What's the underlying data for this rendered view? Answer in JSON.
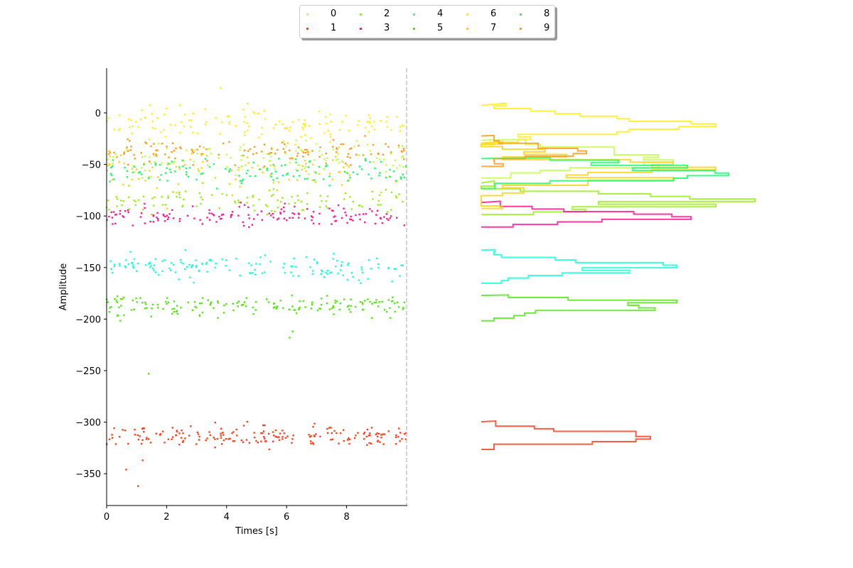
{
  "chart_data": [
    {
      "type": "scatter",
      "title": "",
      "xlabel": "Times [s]",
      "ylabel": "Amplitude",
      "xlim": [
        0,
        10
      ],
      "ylim": [
        -382,
        43
      ],
      "xticks": [
        0,
        2,
        4,
        6,
        8
      ],
      "yticks": [
        0,
        -50,
        -100,
        -150,
        -200,
        -250,
        -300,
        -350
      ],
      "grid": false,
      "vline": {
        "x": 10,
        "style": "dashed",
        "color": "#aaaaaa"
      },
      "legend_position": "top-center, outside, 5 columns",
      "series": [
        {
          "name": "0",
          "color": "#c2ff4a",
          "center": -45,
          "spread": 9,
          "count": 110
        },
        {
          "name": "1",
          "color": "#ff4020",
          "center": -313,
          "spread": 5,
          "count": 190
        },
        {
          "name": "2",
          "color": "#9aef1a",
          "center": -85,
          "spread": 7,
          "count": 110
        },
        {
          "name": "3",
          "color": "#ff1a8c",
          "center": -100,
          "spread": 5,
          "count": 150
        },
        {
          "name": "4",
          "color": "#1affd5",
          "center": -150,
          "spread": 6,
          "count": 150
        },
        {
          "name": "5",
          "color": "#55e51a",
          "center": -187,
          "spread": 5,
          "count": 170
        },
        {
          "name": "6",
          "color": "#ffee1a",
          "center": -10,
          "spread": 7,
          "count": 130
        },
        {
          "name": "7",
          "color": "#ffd21a",
          "center": -57,
          "spread": 10,
          "count": 90
        },
        {
          "name": "8",
          "color": "#1aff66",
          "center": -58,
          "spread": 6,
          "count": 120
        },
        {
          "name": "9",
          "color": "#ff9a1a",
          "center": -37,
          "spread": 6,
          "count": 120
        }
      ],
      "outliers": [
        {
          "series": "6",
          "x": 3.8,
          "y": 24
        },
        {
          "series": "0",
          "x": 4.7,
          "y": 9
        },
        {
          "series": "5",
          "x": 1.4,
          "y": -253
        },
        {
          "series": "1",
          "x": 0.65,
          "y": -346
        },
        {
          "series": "1",
          "x": 1.2,
          "y": -337
        },
        {
          "series": "1",
          "x": 1.05,
          "y": -362
        },
        {
          "series": "5",
          "x": 6.1,
          "y": -218
        },
        {
          "series": "5",
          "x": 6.2,
          "y": -212
        }
      ]
    },
    {
      "type": "line",
      "title": "",
      "description": "Horizontal histogram outlines of amplitude distribution per series (step lines extending right)",
      "orientation": "horizontal",
      "shares_y_axis_with": "scatter",
      "axes_visible": false,
      "series_peaks": [
        {
          "name": "0",
          "peak_y": -45,
          "peak_len": 270
        },
        {
          "name": "1",
          "peak_y": -313,
          "peak_len": 238
        },
        {
          "name": "2",
          "peak_y": -85,
          "peak_len": 385
        },
        {
          "name": "3",
          "peak_y": -100,
          "peak_len": 295
        },
        {
          "name": "4",
          "peak_y": -149,
          "peak_len": 275
        },
        {
          "name": "5",
          "peak_y": -188,
          "peak_len": 275
        },
        {
          "name": "6",
          "peak_y": -12,
          "peak_len": 330
        },
        {
          "name": "7",
          "peak_y": -58,
          "peak_len": 330
        },
        {
          "name": "8",
          "peak_y": -62,
          "peak_len": 348
        },
        {
          "name": "9",
          "peak_y": -38,
          "peak_len": 148
        }
      ]
    }
  ],
  "legend": {
    "items": [
      {
        "label": "0",
        "color": "#c2ff4a"
      },
      {
        "label": "1",
        "color": "#ff4020"
      },
      {
        "label": "2",
        "color": "#9aef1a"
      },
      {
        "label": "3",
        "color": "#ff1a8c"
      },
      {
        "label": "4",
        "color": "#1affd5"
      },
      {
        "label": "5",
        "color": "#55e51a"
      },
      {
        "label": "6",
        "color": "#ffee1a"
      },
      {
        "label": "7",
        "color": "#ffd21a"
      },
      {
        "label": "8",
        "color": "#1aff66"
      },
      {
        "label": "9",
        "color": "#ff9a1a"
      }
    ]
  },
  "axes": {
    "xlabel": "Times [s]",
    "ylabel": "Amplitude",
    "xtick_labels": [
      "0",
      "2",
      "4",
      "6",
      "8"
    ],
    "ytick_labels": [
      "0",
      "−50",
      "−100",
      "−150",
      "−200",
      "−250",
      "−300",
      "−350"
    ]
  }
}
